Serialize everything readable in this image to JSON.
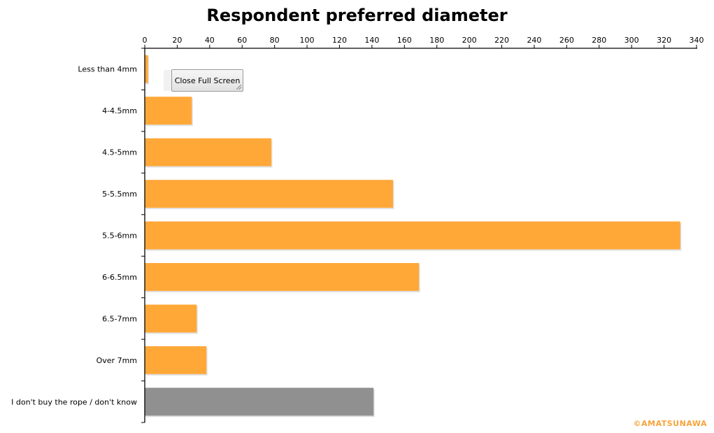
{
  "chart_data": {
    "type": "bar",
    "orientation": "horizontal",
    "title": "Respondent preferred diameter",
    "xlabel": "",
    "ylabel": "",
    "xlim": [
      0,
      340
    ],
    "x_ticks": [
      0,
      20,
      40,
      60,
      80,
      100,
      120,
      140,
      160,
      180,
      200,
      220,
      240,
      260,
      280,
      300,
      320,
      340
    ],
    "x_axis_position": "top",
    "grid": false,
    "legend": "none",
    "categories": [
      "Less than 4mm",
      "4-4.5mm",
      "4.5-5mm",
      "5-5.5mm",
      "5.5-6mm",
      "6-6.5mm",
      "6.5-7mm",
      "Over 7mm",
      "I don't buy the rope / don't know"
    ],
    "values": [
      2,
      29,
      78,
      153,
      330,
      169,
      32,
      38,
      141
    ],
    "bar_colors": [
      "#FFA838",
      "#FFA838",
      "#FFA838",
      "#FFA838",
      "#FFA838",
      "#FFA838",
      "#FFA838",
      "#FFA838",
      "#909090"
    ]
  },
  "watermark": {
    "text": "©AMATSUNAWA",
    "color": "#F7A33A"
  },
  "close_button": {
    "label": "Close Full Screen"
  }
}
